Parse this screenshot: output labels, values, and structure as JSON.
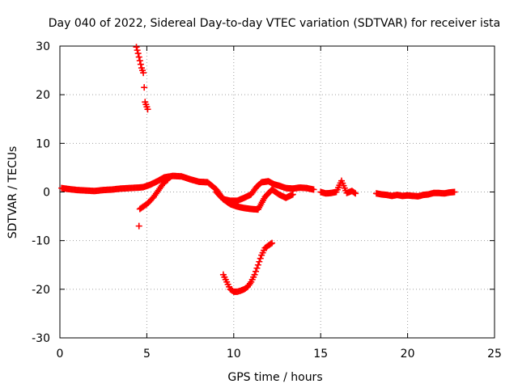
{
  "chart_data": {
    "type": "scatter",
    "title": "Day 040 of 2022, Sidereal Day-to-day VTEC variation (SDTVAR) for receiver ista",
    "xlabel": "GPS time / hours",
    "ylabel": "SDTVAR / TECUs",
    "xlim": [
      0,
      25
    ],
    "ylim": [
      -30,
      30
    ],
    "x_ticks": [
      0,
      5,
      10,
      15,
      20,
      25
    ],
    "x_tick_labels": [
      "0",
      "5",
      "10",
      "15",
      "20",
      "25"
    ],
    "y_ticks": [
      -30,
      -20,
      -10,
      0,
      10,
      20,
      30
    ],
    "y_tick_labels": [
      "-30",
      "-20",
      "-10",
      "0",
      "10",
      "20",
      "30"
    ],
    "grid": true,
    "marker": "plus",
    "color": "#ff0000",
    "series": [
      {
        "name": "main-trace",
        "x": [
          0.1,
          0.5,
          1,
          1.5,
          2,
          2.5,
          3,
          3.5,
          4,
          4.5,
          4.8,
          5.2,
          5.6,
          6,
          6.5,
          7,
          7.5,
          8,
          8.5,
          9,
          9.4,
          9.8,
          10.2,
          10.6,
          11,
          11.3,
          11.6,
          12,
          12.3,
          12.6,
          13,
          13.4,
          13.8,
          14.2,
          14.6
        ],
        "y": [
          0.8,
          0.6,
          0.4,
          0.3,
          0.2,
          0.4,
          0.5,
          0.7,
          0.8,
          0.9,
          1,
          1.5,
          2.2,
          3,
          3.3,
          3.2,
          2.6,
          2.1,
          2,
          0.5,
          -1.5,
          -1.8,
          -1.8,
          -1.2,
          -0.5,
          1,
          2,
          2.2,
          1.6,
          1.3,
          0.8,
          0.7,
          0.9,
          0.8,
          0.5
        ]
      },
      {
        "name": "lower-branch",
        "x": [
          9,
          9.4,
          9.8,
          10.2,
          10.6,
          11,
          11.4,
          11.8,
          12.2,
          12.6,
          13,
          13.4
        ],
        "y": [
          0,
          -1.5,
          -2.5,
          -3,
          -3.3,
          -3.5,
          -3.6,
          -1,
          0.5,
          -0.5,
          -1.2,
          -0.5
        ]
      },
      {
        "name": "rising-branch",
        "x": [
          4.6,
          4.8,
          5,
          5.2,
          5.4,
          5.6,
          5.8,
          6,
          6.2
        ],
        "y": [
          -3.5,
          -3,
          -2.5,
          -1.8,
          -1,
          0,
          1,
          2,
          2.5
        ]
      },
      {
        "name": "negative-dip",
        "x": [
          9.4,
          9.6,
          9.8,
          10,
          10.2,
          10.4,
          10.6,
          10.8,
          11,
          11.2,
          11.4,
          11.6,
          11.8,
          12,
          12.2
        ],
        "y": [
          -17,
          -18.5,
          -20,
          -20.5,
          -20.5,
          -20.3,
          -20,
          -19.5,
          -18.5,
          -17,
          -15,
          -13,
          -11.5,
          -11,
          -10.5
        ]
      },
      {
        "name": "positive-spike",
        "x": [
          4.4,
          4.5,
          4.6,
          4.7,
          4.8,
          4.9,
          5,
          5.05
        ],
        "y": [
          29.8,
          28.5,
          27,
          25.5,
          24.5,
          18.5,
          17.5,
          17
        ]
      },
      {
        "name": "isolated-point",
        "x": [
          4.55
        ],
        "y": [
          -7
        ]
      },
      {
        "name": "late-segments",
        "x": [
          15,
          15.3,
          15.6,
          15.9,
          16.2,
          16.5,
          16.8,
          17,
          18.2,
          18.5,
          18.8,
          19.1,
          19.4,
          19.7,
          20,
          20.3,
          20.6,
          20.9,
          21.2,
          21.5,
          21.8,
          22.1,
          22.4,
          22.7
        ],
        "y": [
          0,
          -0.3,
          -0.2,
          0,
          2.3,
          -0.2,
          0.2,
          -0.3,
          -0.3,
          -0.5,
          -0.6,
          -0.8,
          -0.6,
          -0.8,
          -0.7,
          -0.8,
          -0.9,
          -0.6,
          -0.5,
          -0.2,
          -0.2,
          -0.3,
          -0.1,
          0
        ]
      }
    ]
  }
}
